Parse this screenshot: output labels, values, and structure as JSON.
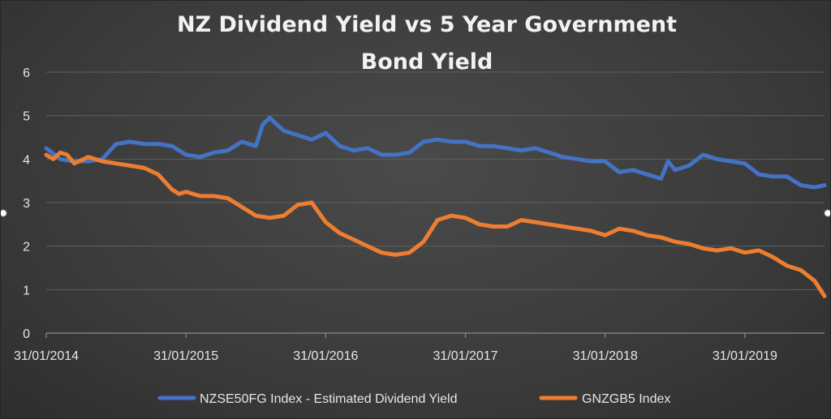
{
  "chart_data": {
    "type": "line",
    "title_lines": [
      "NZ Dividend Yield vs 5 Year Government",
      "Bond Yield"
    ],
    "xlabel": "",
    "ylabel": "",
    "ylim": [
      0,
      6
    ],
    "y_ticks": [
      "0",
      "1",
      "2",
      "3",
      "4",
      "5",
      "6"
    ],
    "x_tick_labels": [
      "31/01/2014",
      "31/01/2015",
      "31/01/2016",
      "31/01/2017",
      "31/01/2018",
      "31/01/2019"
    ],
    "x_start": "31/01/2014",
    "grid": true,
    "legend_position": "bottom",
    "series": [
      {
        "name": "NZSE50FG Index - Estimated Dividend Yield",
        "color": "#4472c4",
        "x": [
          2014.0,
          2014.1,
          2014.2,
          2014.3,
          2014.4,
          2014.5,
          2014.6,
          2014.7,
          2014.8,
          2014.9,
          2015.0,
          2015.1,
          2015.2,
          2015.3,
          2015.4,
          2015.5,
          2015.55,
          2015.6,
          2015.65,
          2015.7,
          2015.8,
          2015.9,
          2016.0,
          2016.1,
          2016.2,
          2016.3,
          2016.4,
          2016.5,
          2016.6,
          2016.7,
          2016.8,
          2016.9,
          2017.0,
          2017.1,
          2017.2,
          2017.3,
          2017.4,
          2017.5,
          2017.6,
          2017.7,
          2017.8,
          2017.9,
          2018.0,
          2018.1,
          2018.2,
          2018.3,
          2018.4,
          2018.45,
          2018.5,
          2018.6,
          2018.7,
          2018.8,
          2018.9,
          2019.0,
          2019.1,
          2019.2,
          2019.3,
          2019.4,
          2019.5,
          2019.57
        ],
        "values": [
          4.25,
          4.0,
          3.95,
          3.95,
          4.0,
          4.35,
          4.4,
          4.35,
          4.35,
          4.3,
          4.1,
          4.05,
          4.15,
          4.2,
          4.4,
          4.3,
          4.8,
          4.95,
          4.8,
          4.65,
          4.55,
          4.45,
          4.6,
          4.3,
          4.2,
          4.25,
          4.1,
          4.1,
          4.15,
          4.4,
          4.45,
          4.4,
          4.4,
          4.3,
          4.3,
          4.25,
          4.2,
          4.25,
          4.15,
          4.05,
          4.0,
          3.95,
          3.95,
          3.7,
          3.75,
          3.65,
          3.55,
          3.95,
          3.75,
          3.85,
          4.1,
          4.0,
          3.95,
          3.9,
          3.65,
          3.6,
          3.6,
          3.4,
          3.35,
          3.4
        ]
      },
      {
        "name": "GNZGB5 Index",
        "color": "#ed7d31",
        "x": [
          2014.0,
          2014.05,
          2014.1,
          2014.15,
          2014.2,
          2014.3,
          2014.4,
          2014.5,
          2014.6,
          2014.7,
          2014.8,
          2014.9,
          2014.95,
          2015.0,
          2015.05,
          2015.1,
          2015.2,
          2015.3,
          2015.4,
          2015.5,
          2015.6,
          2015.7,
          2015.8,
          2015.9,
          2016.0,
          2016.1,
          2016.2,
          2016.3,
          2016.4,
          2016.5,
          2016.6,
          2016.7,
          2016.8,
          2016.9,
          2017.0,
          2017.1,
          2017.2,
          2017.3,
          2017.4,
          2017.5,
          2017.6,
          2017.7,
          2017.8,
          2017.9,
          2018.0,
          2018.1,
          2018.2,
          2018.3,
          2018.4,
          2018.5,
          2018.6,
          2018.7,
          2018.8,
          2018.9,
          2019.0,
          2019.1,
          2019.2,
          2019.3,
          2019.4,
          2019.5,
          2019.57
        ],
        "values": [
          4.1,
          4.0,
          4.15,
          4.1,
          3.9,
          4.05,
          3.95,
          3.9,
          3.85,
          3.8,
          3.65,
          3.3,
          3.2,
          3.25,
          3.2,
          3.15,
          3.15,
          3.1,
          2.9,
          2.7,
          2.65,
          2.7,
          2.95,
          3.0,
          2.55,
          2.3,
          2.15,
          2.0,
          1.85,
          1.8,
          1.85,
          2.1,
          2.6,
          2.7,
          2.65,
          2.5,
          2.45,
          2.45,
          2.6,
          2.55,
          2.5,
          2.45,
          2.4,
          2.35,
          2.25,
          2.4,
          2.35,
          2.25,
          2.2,
          2.1,
          2.05,
          1.95,
          1.9,
          1.95,
          1.85,
          1.9,
          1.75,
          1.55,
          1.45,
          1.2,
          0.85
        ]
      }
    ]
  }
}
